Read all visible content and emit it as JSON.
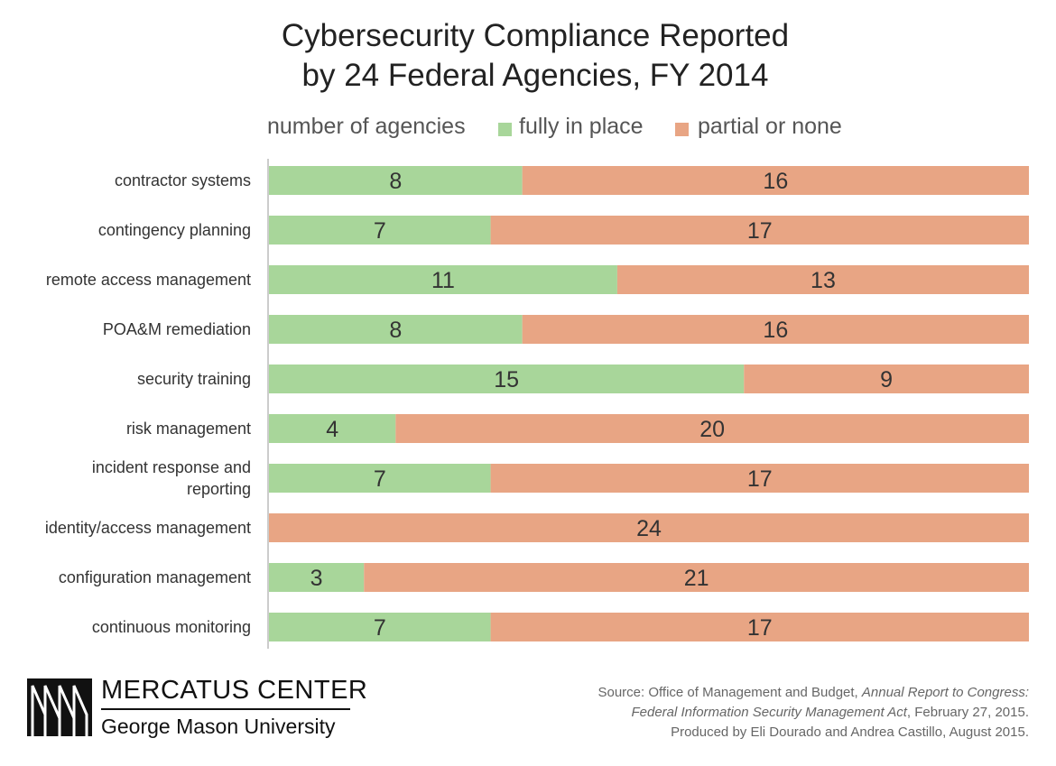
{
  "chart_data": {
    "type": "bar",
    "orientation": "horizontal",
    "stacked": true,
    "title_line1": "Cybersecurity Compliance Reported",
    "title_line2": "by 24 Federal Agencies, FY 2014",
    "legend_label": "number of agencies",
    "categories": [
      "contractor systems",
      "contingency planning",
      "remote access management",
      "POA&M remediation",
      "security training",
      "risk management",
      "incident response and reporting",
      "identity/access management",
      "configuration management",
      "continuous monitoring"
    ],
    "series": [
      {
        "name": "fully in place",
        "color": "#a8d69a",
        "values": [
          8,
          7,
          11,
          8,
          15,
          4,
          7,
          0,
          3,
          7
        ]
      },
      {
        "name": "partial or none",
        "color": "#e8a584",
        "values": [
          16,
          17,
          13,
          16,
          9,
          20,
          17,
          24,
          21,
          17
        ]
      }
    ],
    "xlim": [
      0,
      24
    ],
    "grid": false,
    "legend_position": "top"
  },
  "footer": {
    "logo_line1": "MERCATUS CENTER",
    "logo_line2": "George Mason University",
    "source_prefix": "Source: Office of Management and Budget, ",
    "source_title_a": "Annual Report to Congress:",
    "source_title_b": "Federal Information Security Management Act",
    "source_suffix": ", February 27, 2015.",
    "credit": "Produced by Eli Dourado and Andrea Castillo, August 2015."
  }
}
